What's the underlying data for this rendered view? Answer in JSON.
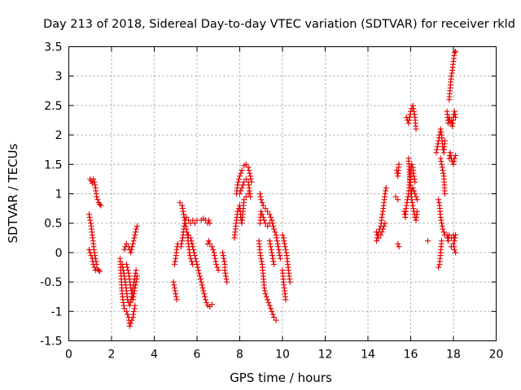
{
  "chart_data": {
    "type": "scatter",
    "title": "Day 213 of 2018, Sidereal Day-to-day VTEC variation (SDTVAR) for receiver rkld",
    "xlabel": "GPS time / hours",
    "ylabel": "SDTVAR / TECUs",
    "xlim": [
      0,
      20
    ],
    "ylim": [
      -1.5,
      3.5
    ],
    "x_ticks": [
      "0",
      "2",
      "4",
      "6",
      "8",
      "10",
      "12",
      "14",
      "16",
      "18",
      "20"
    ],
    "y_ticks": [
      "-1.5",
      "-1",
      "-0.5",
      "0",
      "0.5",
      "1",
      "1.5",
      "2",
      "2.5",
      "3",
      "3.5"
    ],
    "grid": true,
    "marker": "+",
    "marker_color": "#e60000",
    "segments": [
      [
        [
          1.0,
          1.25
        ],
        [
          1.05,
          1.22
        ],
        [
          1.1,
          1.18
        ],
        [
          1.15,
          1.25
        ],
        [
          1.2,
          1.2
        ],
        [
          1.25,
          1.1
        ],
        [
          1.3,
          0.95
        ],
        [
          1.35,
          0.9
        ],
        [
          1.4,
          0.85
        ],
        [
          1.45,
          0.82
        ],
        [
          1.5,
          0.8
        ]
      ],
      [
        [
          0.95,
          0.65
        ],
        [
          1.0,
          0.55
        ],
        [
          1.05,
          0.45
        ],
        [
          1.1,
          0.3
        ],
        [
          1.15,
          0.15
        ],
        [
          1.2,
          0.0
        ],
        [
          1.25,
          -0.1
        ],
        [
          1.3,
          -0.2
        ],
        [
          1.35,
          -0.28
        ],
        [
          1.4,
          -0.3
        ],
        [
          1.45,
          -0.32
        ]
      ],
      [
        [
          0.95,
          0.05
        ],
        [
          1.0,
          0.0
        ],
        [
          1.05,
          -0.05
        ],
        [
          1.1,
          -0.1
        ],
        [
          1.15,
          -0.2
        ],
        [
          1.2,
          -0.25
        ],
        [
          1.25,
          -0.3
        ]
      ],
      [
        [
          2.4,
          -0.1
        ],
        [
          2.45,
          -0.4
        ],
        [
          2.5,
          -0.7
        ],
        [
          2.55,
          -0.85
        ],
        [
          2.6,
          -0.95
        ],
        [
          2.7,
          -1.0
        ],
        [
          2.8,
          -1.1
        ],
        [
          2.85,
          -1.25
        ],
        [
          2.9,
          -1.2
        ],
        [
          3.0,
          -1.1
        ],
        [
          3.1,
          -0.9
        ]
      ],
      [
        [
          2.5,
          -0.2
        ],
        [
          2.55,
          -0.3
        ],
        [
          2.65,
          -0.5
        ],
        [
          2.75,
          -0.8
        ],
        [
          2.85,
          -0.9
        ],
        [
          2.95,
          -0.75
        ],
        [
          3.05,
          -0.5
        ],
        [
          3.15,
          -0.3
        ]
      ],
      [
        [
          2.6,
          0.05
        ],
        [
          2.7,
          0.15
        ],
        [
          2.8,
          0.1
        ],
        [
          2.9,
          0.0
        ],
        [
          3.0,
          0.15
        ],
        [
          3.1,
          0.3
        ],
        [
          3.15,
          0.4
        ],
        [
          3.2,
          0.45
        ]
      ],
      [
        [
          2.7,
          -0.2
        ],
        [
          2.8,
          -0.35
        ],
        [
          2.9,
          -0.6
        ],
        [
          3.0,
          -0.8
        ],
        [
          3.1,
          -0.6
        ],
        [
          3.2,
          -0.4
        ]
      ],
      [
        [
          4.9,
          -0.5
        ],
        [
          4.95,
          -0.6
        ],
        [
          5.0,
          -0.7
        ],
        [
          5.05,
          -0.8
        ]
      ],
      [
        [
          4.95,
          -0.2
        ],
        [
          5.0,
          -0.1
        ],
        [
          5.05,
          0.05
        ],
        [
          5.1,
          0.15
        ]
      ],
      [
        [
          5.2,
          0.85
        ],
        [
          5.3,
          0.8
        ],
        [
          5.35,
          0.7
        ],
        [
          5.4,
          0.6
        ],
        [
          5.45,
          0.5
        ],
        [
          5.5,
          0.4
        ],
        [
          5.55,
          0.3
        ],
        [
          5.6,
          0.15
        ],
        [
          5.65,
          0.0
        ],
        [
          5.7,
          -0.1
        ],
        [
          5.8,
          -0.2
        ]
      ],
      [
        [
          5.25,
          0.1
        ],
        [
          5.3,
          0.2
        ],
        [
          5.35,
          0.3
        ],
        [
          5.4,
          0.45
        ],
        [
          5.45,
          0.55
        ],
        [
          5.5,
          0.6
        ],
        [
          5.6,
          0.55
        ],
        [
          5.7,
          0.5
        ],
        [
          5.8,
          0.55
        ],
        [
          5.9,
          0.5
        ],
        [
          6.0,
          0.55
        ]
      ],
      [
        [
          5.6,
          0.3
        ],
        [
          5.7,
          0.25
        ],
        [
          5.8,
          0.1
        ],
        [
          5.9,
          -0.05
        ],
        [
          6.0,
          -0.2
        ],
        [
          6.1,
          -0.35
        ],
        [
          6.2,
          -0.5
        ],
        [
          6.3,
          -0.65
        ],
        [
          6.4,
          -0.8
        ],
        [
          6.5,
          -0.9
        ],
        [
          6.6,
          -0.92
        ],
        [
          6.7,
          -0.88
        ]
      ],
      [
        [
          6.2,
          0.55
        ],
        [
          6.3,
          0.58
        ],
        [
          6.4,
          0.55
        ],
        [
          6.5,
          0.5
        ],
        [
          6.55,
          0.55
        ],
        [
          6.6,
          0.5
        ]
      ],
      [
        [
          6.5,
          0.15
        ],
        [
          6.55,
          0.2
        ],
        [
          6.6,
          0.15
        ],
        [
          6.7,
          0.1
        ],
        [
          6.8,
          0.0
        ],
        [
          6.9,
          -0.2
        ],
        [
          7.0,
          -0.3
        ]
      ],
      [
        [
          7.2,
          0.0
        ],
        [
          7.25,
          -0.1
        ],
        [
          7.3,
          -0.2
        ],
        [
          7.3,
          -0.3
        ],
        [
          7.35,
          -0.4
        ],
        [
          7.4,
          -0.5
        ]
      ],
      [
        [
          7.75,
          0.25
        ],
        [
          7.8,
          0.4
        ],
        [
          7.85,
          0.55
        ],
        [
          7.9,
          0.7
        ],
        [
          8.0,
          0.8
        ],
        [
          8.05,
          0.6
        ],
        [
          8.1,
          0.5
        ],
        [
          8.15,
          0.7
        ],
        [
          8.2,
          0.9
        ],
        [
          8.3,
          0.95
        ],
        [
          8.4,
          1.0
        ]
      ],
      [
        [
          7.85,
          1.0
        ],
        [
          7.9,
          1.15
        ],
        [
          8.0,
          1.3
        ],
        [
          8.1,
          1.4
        ],
        [
          8.2,
          1.48
        ],
        [
          8.3,
          1.5
        ],
        [
          8.4,
          1.45
        ],
        [
          8.5,
          1.3
        ],
        [
          8.55,
          1.2
        ]
      ],
      [
        [
          8.0,
          1.0
        ],
        [
          8.1,
          1.1
        ],
        [
          8.2,
          1.2
        ],
        [
          8.3,
          1.25
        ],
        [
          8.4,
          1.2
        ],
        [
          8.5,
          0.95
        ]
      ],
      [
        [
          8.95,
          1.0
        ],
        [
          9.0,
          0.9
        ],
        [
          9.1,
          0.8
        ],
        [
          9.2,
          0.75
        ],
        [
          9.3,
          0.7
        ],
        [
          9.4,
          0.65
        ],
        [
          9.5,
          0.55
        ],
        [
          9.6,
          0.4
        ],
        [
          9.7,
          0.3
        ],
        [
          9.8,
          0.1
        ],
        [
          9.9,
          -0.1
        ]
      ],
      [
        [
          8.95,
          0.5
        ],
        [
          9.0,
          0.7
        ],
        [
          9.1,
          0.6
        ],
        [
          9.2,
          0.5
        ],
        [
          9.3,
          0.45
        ],
        [
          9.4,
          0.5
        ]
      ],
      [
        [
          8.9,
          0.2
        ],
        [
          8.95,
          0.0
        ],
        [
          9.0,
          -0.1
        ],
        [
          9.05,
          -0.2
        ],
        [
          9.1,
          -0.4
        ],
        [
          9.15,
          -0.6
        ],
        [
          9.2,
          -0.7
        ],
        [
          9.3,
          -0.8
        ],
        [
          9.4,
          -0.9
        ],
        [
          9.5,
          -1.0
        ],
        [
          9.6,
          -1.1
        ],
        [
          9.7,
          -1.15
        ]
      ],
      [
        [
          9.4,
          0.2
        ],
        [
          9.45,
          0.1
        ],
        [
          9.5,
          0.0
        ],
        [
          9.55,
          -0.1
        ],
        [
          9.6,
          -0.2
        ]
      ],
      [
        [
          10.0,
          0.3
        ],
        [
          10.05,
          0.25
        ],
        [
          10.1,
          0.15
        ],
        [
          10.15,
          0.05
        ],
        [
          10.2,
          -0.05
        ],
        [
          10.25,
          -0.2
        ],
        [
          10.3,
          -0.35
        ],
        [
          10.35,
          -0.5
        ]
      ],
      [
        [
          10.0,
          -0.3
        ],
        [
          10.05,
          -0.5
        ],
        [
          10.1,
          -0.65
        ],
        [
          10.15,
          -0.8
        ]
      ],
      [
        [
          14.4,
          0.2
        ],
        [
          14.45,
          0.3
        ],
        [
          14.5,
          0.35
        ],
        [
          14.55,
          0.4
        ],
        [
          14.6,
          0.45
        ],
        [
          14.65,
          0.6
        ],
        [
          14.7,
          0.7
        ],
        [
          14.75,
          0.85
        ],
        [
          14.8,
          1.0
        ],
        [
          14.85,
          1.1
        ]
      ],
      [
        [
          14.4,
          0.35
        ],
        [
          14.5,
          0.25
        ],
        [
          14.6,
          0.3
        ],
        [
          14.7,
          0.4
        ],
        [
          14.8,
          0.5
        ]
      ],
      [
        [
          15.35,
          1.4
        ],
        [
          15.4,
          1.3
        ],
        [
          15.45,
          1.5
        ]
      ],
      [
        [
          15.3,
          0.95
        ],
        [
          15.4,
          0.9
        ]
      ],
      [
        [
          15.4,
          0.15
        ],
        [
          15.45,
          0.1
        ]
      ],
      [
        [
          15.7,
          0.7
        ],
        [
          15.75,
          0.6
        ],
        [
          15.8,
          0.8
        ],
        [
          15.85,
          0.9
        ],
        [
          15.9,
          1.0
        ],
        [
          15.95,
          1.2
        ],
        [
          16.0,
          1.4
        ],
        [
          16.05,
          1.5
        ],
        [
          16.1,
          1.45
        ],
        [
          16.15,
          1.3
        ],
        [
          16.2,
          1.2
        ]
      ],
      [
        [
          15.8,
          2.3
        ],
        [
          15.9,
          2.2
        ],
        [
          16.0,
          2.4
        ],
        [
          16.1,
          2.5
        ],
        [
          16.15,
          2.4
        ],
        [
          16.2,
          2.3
        ],
        [
          16.25,
          2.1
        ]
      ],
      [
        [
          15.9,
          1.6
        ],
        [
          16.0,
          1.1
        ],
        [
          16.05,
          0.9
        ],
        [
          16.1,
          0.8
        ],
        [
          16.15,
          0.7
        ],
        [
          16.2,
          0.6
        ],
        [
          16.25,
          0.55
        ],
        [
          16.3,
          0.7
        ]
      ],
      [
        [
          16.0,
          1.0
        ],
        [
          16.1,
          1.1
        ],
        [
          16.2,
          1.0
        ],
        [
          16.3,
          0.9
        ]
      ],
      [
        [
          16.8,
          0.2
        ]
      ],
      [
        [
          17.2,
          1.7
        ],
        [
          17.25,
          1.8
        ],
        [
          17.3,
          1.9
        ],
        [
          17.35,
          2.0
        ],
        [
          17.4,
          2.1
        ],
        [
          17.45,
          2.0
        ],
        [
          17.5,
          1.8
        ],
        [
          17.55,
          1.7
        ],
        [
          17.6,
          1.9
        ]
      ],
      [
        [
          17.4,
          1.6
        ],
        [
          17.45,
          1.5
        ],
        [
          17.5,
          1.4
        ],
        [
          17.55,
          1.3
        ],
        [
          17.6,
          1.0
        ]
      ],
      [
        [
          17.3,
          0.9
        ],
        [
          17.35,
          0.8
        ],
        [
          17.4,
          0.6
        ],
        [
          17.45,
          0.5
        ],
        [
          17.5,
          0.4
        ],
        [
          17.55,
          0.35
        ],
        [
          17.6,
          0.3
        ]
      ],
      [
        [
          17.3,
          -0.25
        ],
        [
          17.35,
          -0.2
        ],
        [
          17.4,
          0.0
        ],
        [
          17.45,
          0.2
        ]
      ],
      [
        [
          17.7,
          2.4
        ],
        [
          17.75,
          2.2
        ],
        [
          17.8,
          2.3
        ],
        [
          17.85,
          2.2
        ],
        [
          17.9,
          2.25
        ],
        [
          17.95,
          2.15
        ],
        [
          18.0,
          2.3
        ],
        [
          18.05,
          2.4
        ],
        [
          18.1,
          2.3
        ]
      ],
      [
        [
          17.8,
          2.6
        ],
        [
          17.85,
          2.8
        ],
        [
          17.9,
          3.0
        ],
        [
          17.95,
          3.1
        ],
        [
          18.0,
          3.25
        ],
        [
          18.05,
          3.4
        ],
        [
          18.1,
          3.42
        ]
      ],
      [
        [
          17.8,
          1.6
        ],
        [
          17.85,
          1.7
        ],
        [
          17.9,
          1.6
        ],
        [
          17.95,
          1.55
        ],
        [
          18.0,
          1.5
        ],
        [
          18.05,
          1.6
        ],
        [
          18.1,
          1.65
        ]
      ],
      [
        [
          17.7,
          0.3
        ],
        [
          17.75,
          0.2
        ],
        [
          17.8,
          0.3
        ],
        [
          17.9,
          0.25
        ],
        [
          18.0,
          0.3
        ],
        [
          18.05,
          0.2
        ],
        [
          18.1,
          0.3
        ]
      ],
      [
        [
          17.9,
          0.1
        ],
        [
          18.0,
          0.15
        ],
        [
          18.05,
          0.05
        ],
        [
          18.1,
          0.0
        ]
      ]
    ]
  }
}
